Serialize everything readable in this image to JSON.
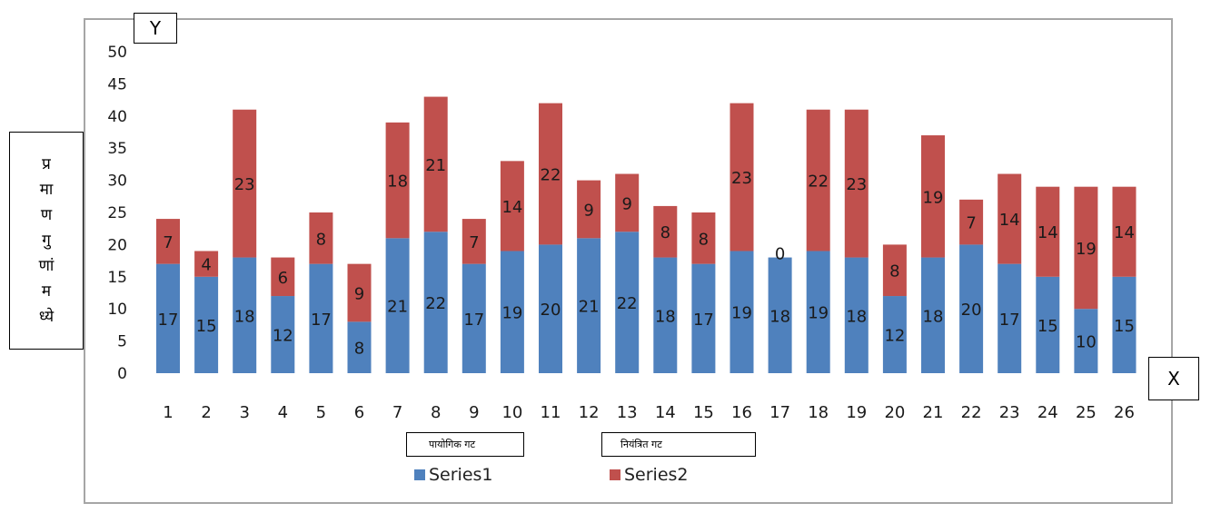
{
  "axis_markers": {
    "y": "Y",
    "x": "X"
  },
  "ylabel_lines": [
    "प्र",
    "मा",
    "ण",
    "गु",
    "णां",
    "म",
    "ध्ये"
  ],
  "group_labels": {
    "a": "पायोगिक गट",
    "b": "नियंत्रित गट"
  },
  "colors": {
    "series1": "#4f81bd",
    "series2": "#c0504d",
    "frame": "#a6a6a6",
    "text": "#1a1a1a"
  },
  "chart_data": {
    "type": "bar",
    "stacked": true,
    "categories": [
      "1",
      "2",
      "3",
      "4",
      "5",
      "6",
      "7",
      "8",
      "9",
      "10",
      "11",
      "12",
      "13",
      "14",
      "15",
      "16",
      "17",
      "18",
      "19",
      "20",
      "21",
      "22",
      "23",
      "24",
      "25",
      "26"
    ],
    "series": [
      {
        "name": "Series1",
        "values": [
          17,
          15,
          18,
          12,
          17,
          8,
          21,
          22,
          17,
          19,
          20,
          21,
          22,
          18,
          17,
          19,
          18,
          19,
          18,
          12,
          18,
          20,
          17,
          15,
          10,
          15
        ]
      },
      {
        "name": "Series2",
        "values": [
          7,
          4,
          23,
          6,
          8,
          9,
          18,
          21,
          7,
          14,
          22,
          9,
          9,
          8,
          8,
          23,
          0,
          22,
          23,
          8,
          19,
          7,
          14,
          14,
          19,
          14
        ]
      }
    ],
    "ylim": [
      0,
      50
    ],
    "yticks": [
      0,
      5,
      10,
      15,
      20,
      25,
      30,
      35,
      40,
      45,
      50
    ],
    "grid": false,
    "legend_position": "bottom"
  }
}
